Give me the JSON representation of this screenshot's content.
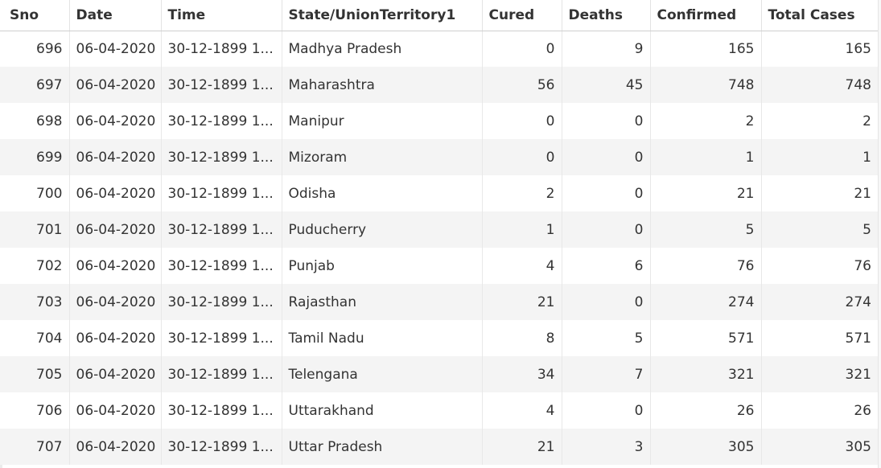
{
  "columns": [
    "Sno",
    "Date",
    "Time",
    "State/UnionTerritory1",
    "Cured",
    "Deaths",
    "Confirmed",
    "Total Cases"
  ],
  "rows": [
    {
      "sno": "696",
      "date": "06-04-2020",
      "time": "30-12-1899 1...",
      "state": "Madhya Pradesh",
      "cured": "0",
      "deaths": "9",
      "confirmed": "165",
      "total": "165"
    },
    {
      "sno": "697",
      "date": "06-04-2020",
      "time": "30-12-1899 1...",
      "state": "Maharashtra",
      "cured": "56",
      "deaths": "45",
      "confirmed": "748",
      "total": "748"
    },
    {
      "sno": "698",
      "date": "06-04-2020",
      "time": "30-12-1899 1...",
      "state": "Manipur",
      "cured": "0",
      "deaths": "0",
      "confirmed": "2",
      "total": "2"
    },
    {
      "sno": "699",
      "date": "06-04-2020",
      "time": "30-12-1899 1...",
      "state": "Mizoram",
      "cured": "0",
      "deaths": "0",
      "confirmed": "1",
      "total": "1"
    },
    {
      "sno": "700",
      "date": "06-04-2020",
      "time": "30-12-1899 1...",
      "state": "Odisha",
      "cured": "2",
      "deaths": "0",
      "confirmed": "21",
      "total": "21"
    },
    {
      "sno": "701",
      "date": "06-04-2020",
      "time": "30-12-1899 1...",
      "state": "Puducherry",
      "cured": "1",
      "deaths": "0",
      "confirmed": "5",
      "total": "5"
    },
    {
      "sno": "702",
      "date": "06-04-2020",
      "time": "30-12-1899 1...",
      "state": "Punjab",
      "cured": "4",
      "deaths": "6",
      "confirmed": "76",
      "total": "76"
    },
    {
      "sno": "703",
      "date": "06-04-2020",
      "time": "30-12-1899 1...",
      "state": "Rajasthan",
      "cured": "21",
      "deaths": "0",
      "confirmed": "274",
      "total": "274"
    },
    {
      "sno": "704",
      "date": "06-04-2020",
      "time": "30-12-1899 1...",
      "state": "Tamil Nadu",
      "cured": "8",
      "deaths": "5",
      "confirmed": "571",
      "total": "571"
    },
    {
      "sno": "705",
      "date": "06-04-2020",
      "time": "30-12-1899 1...",
      "state": "Telengana",
      "cured": "34",
      "deaths": "7",
      "confirmed": "321",
      "total": "321"
    },
    {
      "sno": "706",
      "date": "06-04-2020",
      "time": "30-12-1899 1...",
      "state": "Uttarakhand",
      "cured": "4",
      "deaths": "0",
      "confirmed": "26",
      "total": "26"
    },
    {
      "sno": "707",
      "date": "06-04-2020",
      "time": "30-12-1899 1...",
      "state": "Uttar Pradesh",
      "cured": "21",
      "deaths": "3",
      "confirmed": "305",
      "total": "305"
    }
  ]
}
